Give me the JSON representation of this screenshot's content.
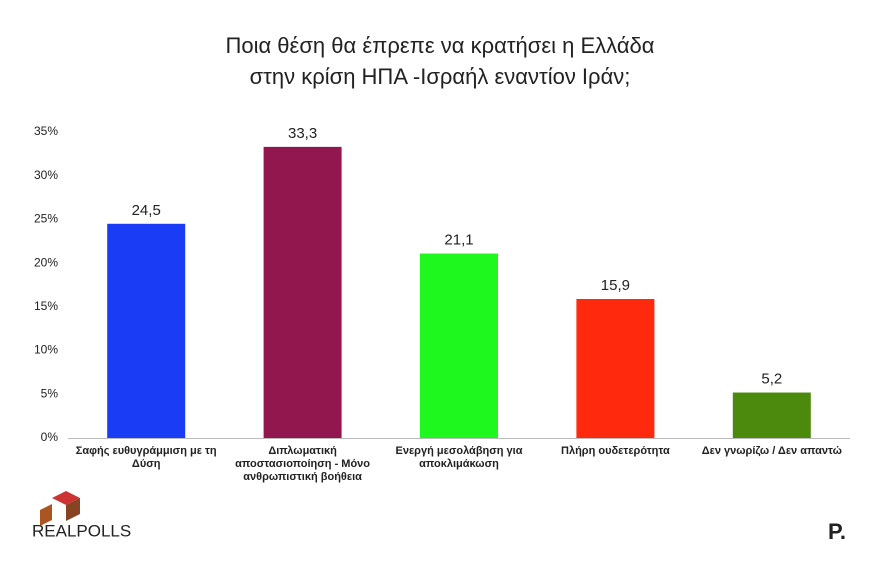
{
  "chart_data": {
    "type": "bar",
    "title": [
      "Ποια θέση θα έπρεπε να κρατήσει η Ελλάδα",
      "στην κρίση ΗΠΑ -Ισραήλ εναντίον Ιράν;"
    ],
    "categories": [
      "Σαφής ευθυγράμμιση  με τη Δύση",
      "Διπλωματική αποστασιοποίηση  - Μόνο ανθρωπιστική βοήθεια",
      "Ενεργή μεσολάβηση  για αποκλιμάκωση",
      "Πλήρη ουδετερότητα",
      "Δεν γνωρίζω  /  Δεν απαντώ"
    ],
    "values": [
      24.5,
      33.3,
      21.1,
      15.9,
      5.2
    ],
    "value_labels": [
      "24,5",
      "33,3",
      "21,1",
      "15,9",
      "5,2"
    ],
    "colors": [
      "#1a3cf5",
      "#93174f",
      "#1ef81e",
      "#ff2a0e",
      "#4b8a0c"
    ],
    "ylim": [
      0,
      35
    ],
    "yticks": [
      {
        "value": 0,
        "label": "0%"
      },
      {
        "value": 5,
        "label": "5%"
      },
      {
        "value": 10,
        "label": "10%"
      },
      {
        "value": 15,
        "label": "15%"
      },
      {
        "value": 20,
        "label": "20%"
      },
      {
        "value": 25,
        "label": "25%"
      },
      {
        "value": 30,
        "label": "30%"
      },
      {
        "value": 35,
        "label": "35%"
      }
    ],
    "grid": false,
    "logo": "REALPOLLS",
    "brand": "P."
  }
}
